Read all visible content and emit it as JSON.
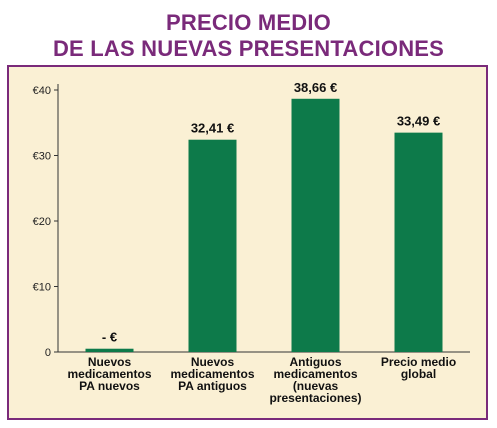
{
  "title": {
    "line1": "PRECIO MEDIO",
    "line2": "DE LAS NUEVAS PRESENTACIONES"
  },
  "colors": {
    "title": "#7a2a7a",
    "panel_bg": "#faf0d4",
    "panel_border": "#7a2a7a",
    "bar": "#0d7a4a"
  },
  "chart_data": {
    "type": "bar",
    "categories": [
      [
        "Nuevos",
        "medicamentos",
        "PA nuevos"
      ],
      [
        "Nuevos",
        "medicamentos",
        "PA antiguos"
      ],
      [
        "Antiguos",
        "medicamentos",
        "(nuevas",
        "presentaciones)"
      ],
      [
        "Precio medio",
        "global"
      ]
    ],
    "values": [
      0.5,
      32.41,
      38.66,
      33.49
    ],
    "value_labels": [
      "- €",
      "32,41 €",
      "38,66 €",
      "33,49 €"
    ],
    "yticks": [
      0,
      10,
      20,
      30,
      40
    ],
    "ytick_labels": [
      "0",
      "€10",
      "€20",
      "€30",
      "€40"
    ],
    "ylim": [
      0,
      40
    ],
    "grid": false,
    "legend": "none"
  }
}
